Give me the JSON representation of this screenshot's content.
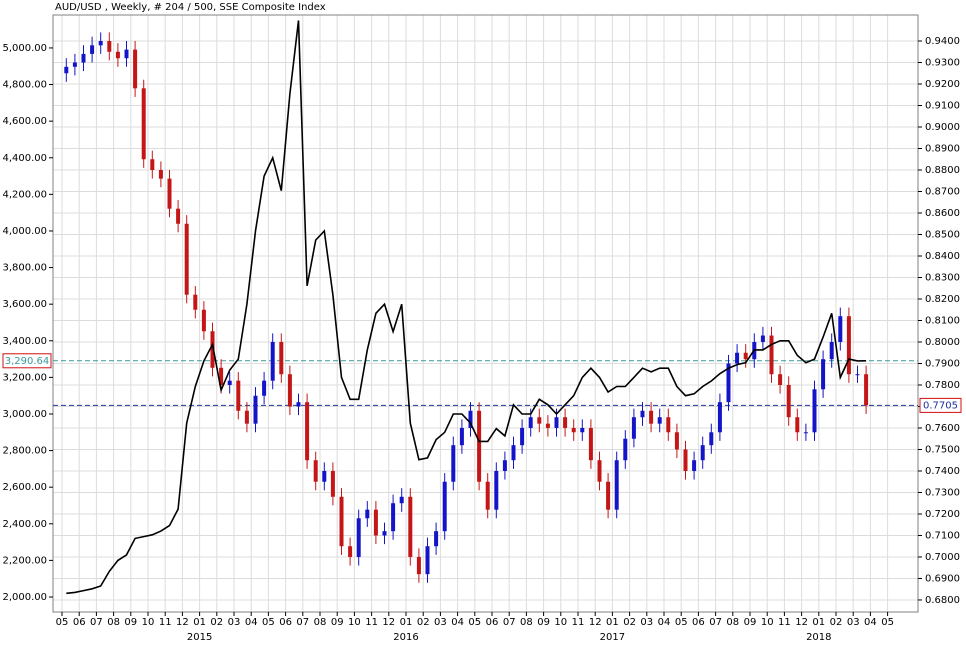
{
  "chart_data": {
    "type": "candlestick",
    "title": "AUD/USD , Weekly, # 204 / 500, SSE Composite Index",
    "x_labels": [
      "05",
      "06",
      "07",
      "08",
      "09",
      "10",
      "11",
      "12",
      "01",
      "02",
      "03",
      "04",
      "05",
      "06",
      "07",
      "08",
      "09",
      "10",
      "11",
      "12",
      "01",
      "02",
      "03",
      "04",
      "05",
      "06",
      "07",
      "08",
      "09",
      "10",
      "11",
      "12",
      "01",
      "02",
      "03",
      "04",
      "05",
      "06",
      "07",
      "08",
      "09",
      "10",
      "11",
      "12",
      "01",
      "02",
      "03",
      "04",
      "05"
    ],
    "year_labels": [
      "2015",
      "2016",
      "2017",
      "2018"
    ],
    "candles": {
      "axis": "y2",
      "up_color": "#1414c8",
      "down_color": "#c41616",
      "open": [
        0.925,
        0.928,
        0.93,
        0.934,
        0.938,
        0.94,
        0.935,
        0.932,
        0.936,
        0.918,
        0.885,
        0.88,
        0.876,
        0.862,
        0.855,
        0.822,
        0.815,
        0.805,
        0.788,
        0.78,
        0.782,
        0.768,
        0.762,
        0.775,
        0.782,
        0.8,
        0.785,
        0.77,
        0.772,
        0.745,
        0.735,
        0.74,
        0.728,
        0.705,
        0.7,
        0.718,
        0.722,
        0.71,
        0.712,
        0.725,
        0.728,
        0.7,
        0.692,
        0.705,
        0.712,
        0.735,
        0.752,
        0.76,
        0.768,
        0.735,
        0.722,
        0.74,
        0.745,
        0.752,
        0.76,
        0.765,
        0.762,
        0.76,
        0.765,
        0.76,
        0.758,
        0.76,
        0.745,
        0.735,
        0.722,
        0.745,
        0.755,
        0.765,
        0.768,
        0.762,
        0.765,
        0.758,
        0.75,
        0.74,
        0.745,
        0.752,
        0.758,
        0.772,
        0.79,
        0.795,
        0.792,
        0.8,
        0.803,
        0.785,
        0.78,
        0.765,
        0.758,
        0.758,
        0.778,
        0.792,
        0.8,
        0.812,
        0.785,
        0.785
      ],
      "high": [
        0.932,
        0.934,
        0.938,
        0.942,
        0.944,
        0.944,
        0.939,
        0.94,
        0.94,
        0.922,
        0.889,
        0.884,
        0.88,
        0.866,
        0.859,
        0.826,
        0.819,
        0.809,
        0.792,
        0.786,
        0.786,
        0.772,
        0.779,
        0.786,
        0.804,
        0.804,
        0.789,
        0.776,
        0.776,
        0.749,
        0.744,
        0.744,
        0.732,
        0.709,
        0.722,
        0.726,
        0.726,
        0.716,
        0.729,
        0.732,
        0.732,
        0.704,
        0.709,
        0.716,
        0.739,
        0.756,
        0.764,
        0.772,
        0.772,
        0.739,
        0.744,
        0.749,
        0.756,
        0.764,
        0.769,
        0.769,
        0.766,
        0.769,
        0.769,
        0.764,
        0.764,
        0.764,
        0.749,
        0.739,
        0.749,
        0.759,
        0.769,
        0.772,
        0.772,
        0.769,
        0.769,
        0.762,
        0.754,
        0.749,
        0.756,
        0.762,
        0.776,
        0.794,
        0.799,
        0.799,
        0.804,
        0.807,
        0.807,
        0.789,
        0.784,
        0.769,
        0.762,
        0.782,
        0.796,
        0.804,
        0.816,
        0.816,
        0.789,
        0.789
      ],
      "low": [
        0.921,
        0.924,
        0.926,
        0.93,
        0.934,
        0.931,
        0.928,
        0.928,
        0.914,
        0.881,
        0.876,
        0.872,
        0.858,
        0.851,
        0.818,
        0.811,
        0.801,
        0.784,
        0.776,
        0.776,
        0.764,
        0.758,
        0.758,
        0.771,
        0.778,
        0.781,
        0.766,
        0.766,
        0.741,
        0.731,
        0.731,
        0.724,
        0.701,
        0.696,
        0.696,
        0.714,
        0.706,
        0.706,
        0.708,
        0.721,
        0.696,
        0.688,
        0.688,
        0.701,
        0.708,
        0.731,
        0.748,
        0.756,
        0.731,
        0.718,
        0.718,
        0.736,
        0.741,
        0.748,
        0.756,
        0.758,
        0.756,
        0.756,
        0.756,
        0.754,
        0.754,
        0.741,
        0.731,
        0.718,
        0.718,
        0.741,
        0.751,
        0.761,
        0.758,
        0.758,
        0.754,
        0.746,
        0.736,
        0.736,
        0.741,
        0.748,
        0.754,
        0.768,
        0.786,
        0.788,
        0.788,
        0.796,
        0.781,
        0.776,
        0.761,
        0.754,
        0.754,
        0.754,
        0.774,
        0.788,
        0.796,
        0.781,
        0.781,
        0.7665
      ],
      "close": [
        0.928,
        0.93,
        0.934,
        0.938,
        0.94,
        0.935,
        0.932,
        0.936,
        0.918,
        0.885,
        0.88,
        0.876,
        0.862,
        0.855,
        0.822,
        0.815,
        0.805,
        0.788,
        0.78,
        0.782,
        0.768,
        0.762,
        0.775,
        0.782,
        0.8,
        0.785,
        0.77,
        0.772,
        0.745,
        0.735,
        0.74,
        0.728,
        0.705,
        0.7,
        0.718,
        0.722,
        0.71,
        0.712,
        0.725,
        0.728,
        0.7,
        0.692,
        0.705,
        0.712,
        0.735,
        0.752,
        0.76,
        0.768,
        0.735,
        0.722,
        0.74,
        0.745,
        0.752,
        0.76,
        0.765,
        0.762,
        0.76,
        0.765,
        0.76,
        0.758,
        0.76,
        0.745,
        0.735,
        0.722,
        0.745,
        0.755,
        0.765,
        0.768,
        0.762,
        0.765,
        0.758,
        0.75,
        0.74,
        0.745,
        0.752,
        0.758,
        0.772,
        0.79,
        0.795,
        0.792,
        0.8,
        0.803,
        0.785,
        0.78,
        0.765,
        0.758,
        0.758,
        0.778,
        0.792,
        0.8,
        0.812,
        0.785,
        0.785,
        0.7705
      ]
    },
    "series": [
      {
        "axis": "y",
        "color": "#000000",
        "values": [
          2020,
          2025,
          2035,
          2045,
          2060,
          2140,
          2200,
          2230,
          2320,
          2330,
          2340,
          2360,
          2390,
          2480,
          2950,
          3150,
          3290,
          3380,
          3130,
          3240,
          3300,
          3600,
          4000,
          4300,
          4400,
          4220,
          4750,
          5150,
          3700,
          3950,
          4000,
          3650,
          3200,
          3080,
          3080,
          3350,
          3550,
          3600,
          3450,
          3600,
          2950,
          2750,
          2760,
          2860,
          2900,
          3000,
          3000,
          2950,
          2850,
          2850,
          2920,
          2880,
          3050,
          3000,
          3000,
          3080,
          3050,
          3000,
          3050,
          3100,
          3200,
          3250,
          3200,
          3120,
          3150,
          3150,
          3200,
          3250,
          3230,
          3250,
          3250,
          3150,
          3100,
          3110,
          3150,
          3180,
          3220,
          3250,
          3270,
          3280,
          3350,
          3350,
          3380,
          3400,
          3400,
          3320,
          3280,
          3300,
          3420,
          3550,
          3200,
          3300,
          3290,
          3290.64
        ]
      }
    ],
    "ylim": [
      1918,
      5180
    ],
    "yticks": [
      {
        "value": 2000,
        "label": "2,000.00"
      },
      {
        "value": 2200,
        "label": "2,200.00"
      },
      {
        "value": 2400,
        "label": "2,400.00"
      },
      {
        "value": 2600,
        "label": "2,600.00"
      },
      {
        "value": 2800,
        "label": "2,800.00"
      },
      {
        "value": 3000,
        "label": "3,000.00"
      },
      {
        "value": 3200,
        "label": "3,200.00"
      },
      {
        "value": 3400,
        "label": "3,400.00"
      },
      {
        "value": 3600,
        "label": "3,600.00"
      },
      {
        "value": 3800,
        "label": "3,800.00"
      },
      {
        "value": 4000,
        "label": "4,000.00"
      },
      {
        "value": 4200,
        "label": "4,200.00"
      },
      {
        "value": 4400,
        "label": "4,400.00"
      },
      {
        "value": 4600,
        "label": "4,600.00"
      },
      {
        "value": 4800,
        "label": "4,800.00"
      },
      {
        "value": 5000,
        "label": "5,000.00"
      }
    ],
    "y2lim": [
      0.6744,
      0.9521
    ],
    "y2ticks": [
      {
        "value": 0.68,
        "label": "0.6800"
      },
      {
        "value": 0.69,
        "label": "0.6900"
      },
      {
        "value": 0.7,
        "label": "0.7000"
      },
      {
        "value": 0.71,
        "label": "0.7100"
      },
      {
        "value": 0.72,
        "label": "0.7200"
      },
      {
        "value": 0.73,
        "label": "0.7300"
      },
      {
        "value": 0.74,
        "label": "0.7400"
      },
      {
        "value": 0.75,
        "label": "0.7500"
      },
      {
        "value": 0.76,
        "label": "0.7600"
      },
      {
        "value": 0.77,
        "label": "0.7700"
      },
      {
        "value": 0.78,
        "label": "0.7800"
      },
      {
        "value": 0.79,
        "label": "0.7900"
      },
      {
        "value": 0.8,
        "label": "0.8000"
      },
      {
        "value": 0.81,
        "label": "0.8100"
      },
      {
        "value": 0.82,
        "label": "0.8200"
      },
      {
        "value": 0.83,
        "label": "0.8300"
      },
      {
        "value": 0.84,
        "label": "0.8400"
      },
      {
        "value": 0.85,
        "label": "0.8500"
      },
      {
        "value": 0.86,
        "label": "0.8600"
      },
      {
        "value": 0.87,
        "label": "0.8700"
      },
      {
        "value": 0.88,
        "label": "0.8800"
      },
      {
        "value": 0.89,
        "label": "0.8900"
      },
      {
        "value": 0.9,
        "label": "0.9000"
      },
      {
        "value": 0.91,
        "label": "0.9100"
      },
      {
        "value": 0.92,
        "label": "0.9200"
      },
      {
        "value": 0.93,
        "label": "0.9300"
      },
      {
        "value": 0.94,
        "label": "0.9400"
      }
    ],
    "grid": true,
    "markers": [
      {
        "axis": "y",
        "value": 3290.64,
        "label": "3,290.64",
        "color": "#3a9a9a"
      },
      {
        "axis": "y2",
        "value": 0.7705,
        "label": "0.7705",
        "color": "#2030a0"
      }
    ]
  }
}
